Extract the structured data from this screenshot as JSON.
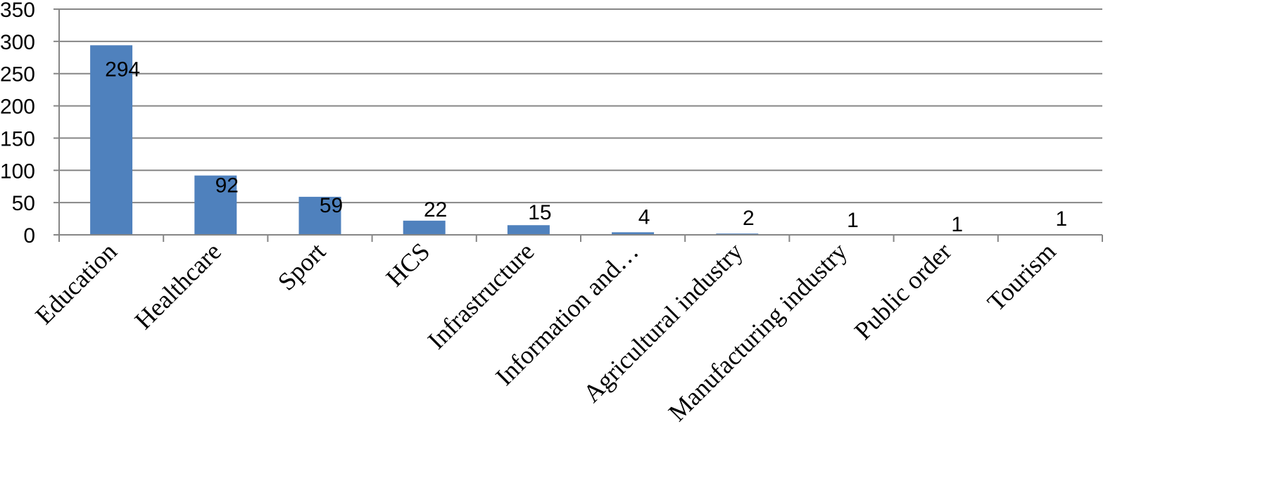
{
  "chart_data": {
    "type": "bar",
    "title": "",
    "xlabel": "",
    "ylabel": "",
    "categories": [
      "Education",
      "Healthcare",
      "Sport",
      "HCS",
      "Infrastructure",
      "Information and…",
      "Agricultural industry",
      "Manufacturing industry",
      "Public order",
      "Tourism"
    ],
    "values": [
      294,
      92,
      59,
      22,
      15,
      4,
      2,
      1,
      1,
      1
    ],
    "data_labels": [
      "294",
      "92",
      "59",
      "22",
      "15",
      "4",
      "2",
      "1",
      "1",
      "1"
    ],
    "y_ticks": [
      "0",
      "50",
      "100",
      "150",
      "200",
      "250",
      "300",
      "350"
    ],
    "ylim": [
      0,
      350
    ],
    "grid": true,
    "legend": "none",
    "bar_color": "#4f81bd",
    "grid_color": "#868686"
  }
}
